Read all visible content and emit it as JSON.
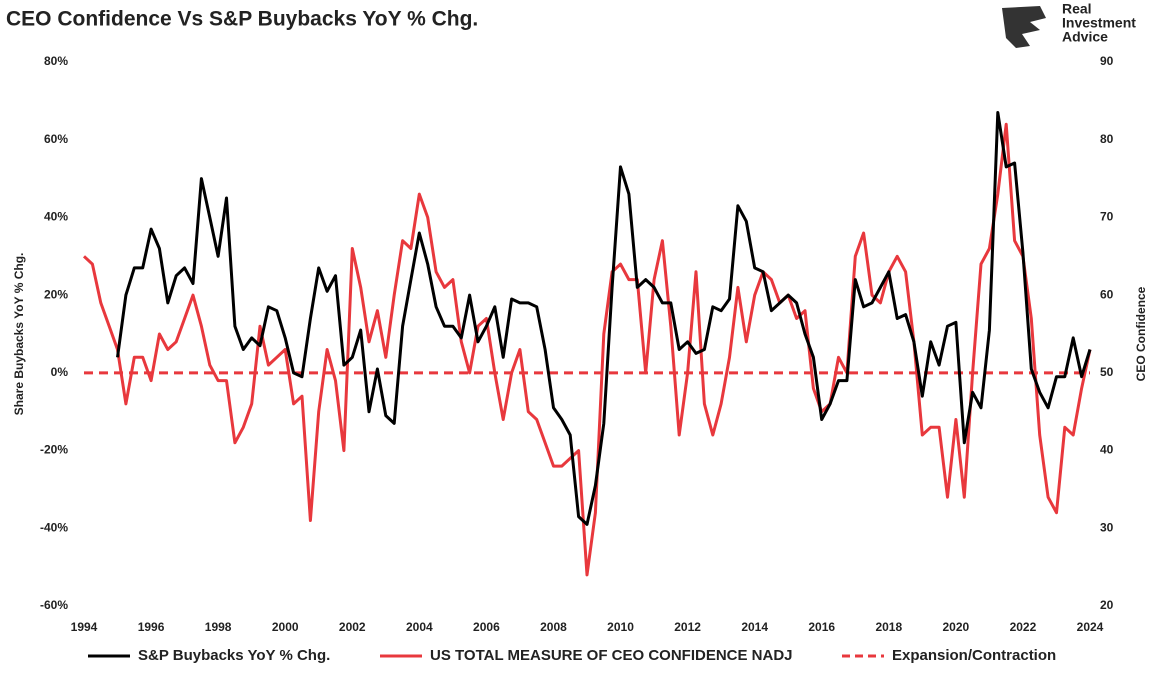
{
  "chart_data": {
    "type": "line",
    "title": "CEO Confidence Vs S&P Buybacks YoY % Chg.",
    "logo_text": [
      "Real",
      "Investment",
      "Advice"
    ],
    "ylabel": "Share Buybacks YoY % Chg.",
    "y2label": "CEO Confidence",
    "xlim": [
      1994,
      2024
    ],
    "xticks": [
      1994,
      1996,
      1998,
      2000,
      2002,
      2004,
      2006,
      2008,
      2010,
      2012,
      2014,
      2016,
      2018,
      2020,
      2022,
      2024
    ],
    "ylim": [
      -60,
      80
    ],
    "yticks": [
      {
        "value": -60,
        "label": "-60%"
      },
      {
        "value": -40,
        "label": "-40%"
      },
      {
        "value": -20,
        "label": "-20%"
      },
      {
        "value": 0,
        "label": "0%"
      },
      {
        "value": 20,
        "label": "20%"
      },
      {
        "value": 40,
        "label": "40%"
      },
      {
        "value": 60,
        "label": "60%"
      },
      {
        "value": 80,
        "label": "80%"
      }
    ],
    "y2lim": [
      20,
      90
    ],
    "y2ticks": [
      20,
      30,
      40,
      50,
      60,
      70,
      80,
      90
    ],
    "grid": false,
    "legend": "bottom",
    "series": [
      {
        "name": "S&P Buybacks YoY % Chg.",
        "color": "#000000",
        "x": [
          1995,
          1995.25,
          1995.5,
          1995.75,
          1996,
          1996.25,
          1996.5,
          1996.75,
          1997,
          1997.25,
          1997.5,
          1997.75,
          1998,
          1998.25,
          1998.5,
          1998.75,
          1999,
          1999.25,
          1999.5,
          1999.75,
          2000,
          2000.25,
          2000.5,
          2000.75,
          2001,
          2001.25,
          2001.5,
          2001.75,
          2002,
          2002.25,
          2002.5,
          2002.75,
          2003,
          2003.25,
          2003.5,
          2003.75,
          2004,
          2004.25,
          2004.5,
          2004.75,
          2005,
          2005.25,
          2005.5,
          2005.75,
          2006,
          2006.25,
          2006.5,
          2006.75,
          2007,
          2007.25,
          2007.5,
          2007.75,
          2008,
          2008.25,
          2008.5,
          2008.75,
          2009,
          2009.25,
          2009.5,
          2009.75,
          2010,
          2010.25,
          2010.5,
          2010.75,
          2011,
          2011.25,
          2011.5,
          2011.75,
          2012,
          2012.25,
          2012.5,
          2012.75,
          2013,
          2013.25,
          2013.5,
          2013.75,
          2014,
          2014.25,
          2014.5,
          2014.75,
          2015,
          2015.25,
          2015.5,
          2015.75,
          2016,
          2016.25,
          2016.5,
          2016.75,
          2017,
          2017.25,
          2017.5,
          2017.75,
          2018,
          2018.25,
          2018.5,
          2018.75,
          2019,
          2019.25,
          2019.5,
          2019.75,
          2020,
          2020.25,
          2020.5,
          2020.75,
          2021,
          2021.25,
          2021.5,
          2021.75,
          2022,
          2022.25,
          2022.5,
          2022.75,
          2023,
          2023.25,
          2023.5,
          2023.75,
          2024
        ],
        "values": [
          4,
          20,
          27,
          27,
          37,
          32,
          18,
          25,
          27,
          23,
          50,
          40,
          30,
          45,
          12,
          6,
          9,
          7,
          17,
          16,
          9,
          0,
          -1,
          14,
          27,
          21,
          25,
          2,
          4,
          11,
          -10,
          1,
          -11,
          -13,
          12,
          24,
          36,
          28,
          17,
          12,
          12,
          9,
          20,
          8,
          12,
          17,
          4,
          19,
          18,
          18,
          17,
          6,
          -9,
          -12,
          -16,
          -37,
          -39,
          -29,
          -13,
          22,
          53,
          46,
          22,
          24,
          22,
          18,
          18,
          6,
          8,
          5,
          6,
          17,
          16,
          19,
          43,
          39,
          27,
          26,
          16,
          18,
          20,
          18,
          10,
          4,
          -12,
          -8,
          -2,
          -2,
          24,
          17,
          18,
          22,
          26,
          14,
          15,
          8,
          -6,
          8,
          2,
          12,
          13,
          -18,
          -5,
          -9,
          11,
          67,
          53,
          54,
          31,
          1,
          -5,
          -9,
          -1,
          -1,
          9,
          -1,
          6
        ]
      },
      {
        "name": "US TOTAL MEASURE OF CEO CONFIDENCE NADJ",
        "color": "#e8383d",
        "axis": "y2",
        "x": [
          1994,
          1994.25,
          1994.5,
          1994.75,
          1995,
          1995.25,
          1995.5,
          1995.75,
          1996,
          1996.25,
          1996.5,
          1996.75,
          1997,
          1997.25,
          1997.5,
          1997.75,
          1998,
          1998.25,
          1998.5,
          1998.75,
          1999,
          1999.25,
          1999.5,
          1999.75,
          2000,
          2000.25,
          2000.5,
          2000.75,
          2001,
          2001.25,
          2001.5,
          2001.75,
          2002,
          2002.25,
          2002.5,
          2002.75,
          2003,
          2003.25,
          2003.5,
          2003.75,
          2004,
          2004.25,
          2004.5,
          2004.75,
          2005,
          2005.25,
          2005.5,
          2005.75,
          2006,
          2006.25,
          2006.5,
          2006.75,
          2007,
          2007.25,
          2007.5,
          2007.75,
          2008,
          2008.25,
          2008.5,
          2008.75,
          2009,
          2009.25,
          2009.5,
          2009.75,
          2010,
          2010.25,
          2010.5,
          2010.75,
          2011,
          2011.25,
          2011.5,
          2011.75,
          2012,
          2012.25,
          2012.5,
          2012.75,
          2013,
          2013.25,
          2013.5,
          2013.75,
          2014,
          2014.25,
          2014.5,
          2014.75,
          2015,
          2015.25,
          2015.5,
          2015.75,
          2016,
          2016.25,
          2016.5,
          2016.75,
          2017,
          2017.25,
          2017.5,
          2017.75,
          2018,
          2018.25,
          2018.5,
          2018.75,
          2019,
          2019.25,
          2019.5,
          2019.75,
          2020,
          2020.25,
          2020.5,
          2020.75,
          2021,
          2021.25,
          2021.5,
          2021.75,
          2022,
          2022.25,
          2022.5,
          2022.75,
          2023,
          2023.25,
          2023.5,
          2023.75,
          2024
        ],
        "values": [
          65,
          64,
          59,
          56,
          53,
          46,
          52,
          52,
          49,
          55,
          53,
          54,
          57,
          60,
          56,
          51,
          49,
          49,
          41,
          43,
          46,
          56,
          51,
          52,
          53,
          46,
          47,
          31,
          45,
          53,
          49,
          40,
          66,
          61,
          54,
          58,
          52,
          60,
          67,
          66,
          73,
          70,
          63,
          61,
          62,
          54,
          50,
          56,
          57,
          50,
          44,
          50,
          53,
          45,
          44,
          41,
          38,
          38,
          39,
          40,
          24,
          32,
          55,
          63,
          64,
          62,
          62,
          50,
          62,
          67,
          56,
          42,
          50,
          63,
          46,
          42,
          46,
          52,
          61,
          54,
          60,
          63,
          62,
          59,
          60,
          57,
          58,
          48,
          45,
          46,
          52,
          50,
          65,
          68,
          60,
          59,
          63,
          65,
          63,
          54,
          42,
          43,
          43,
          34,
          44,
          34,
          50,
          64,
          66,
          73,
          82,
          67,
          65,
          57,
          42,
          34,
          32,
          43,
          42,
          48,
          53
        ]
      }
    ],
    "hline": {
      "name": "Expansion/Contraction",
      "value": 0,
      "color": "#e8383d",
      "style": "dashed"
    }
  }
}
